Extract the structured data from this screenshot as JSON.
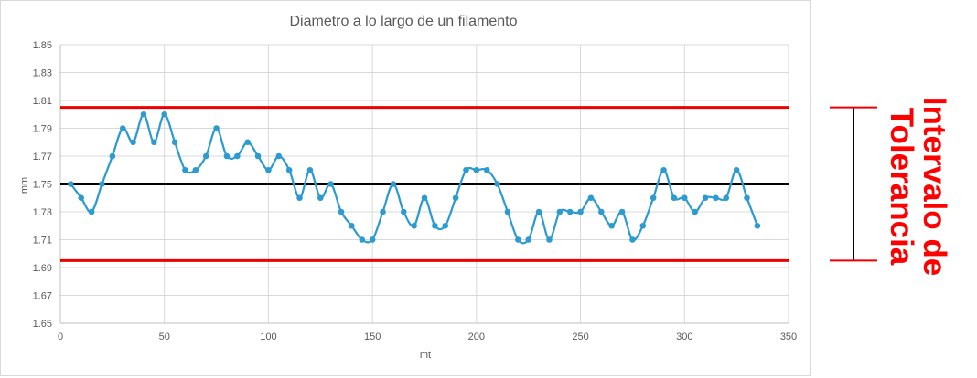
{
  "chart_data": {
    "type": "line",
    "title": "Diametro a lo largo de un filamento",
    "xlabel": "mt",
    "ylabel": "mm",
    "xlim": [
      0,
      350
    ],
    "ylim": [
      1.65,
      1.85
    ],
    "xticks": [
      0,
      50,
      100,
      150,
      200,
      250,
      300,
      350
    ],
    "yticks": [
      1.65,
      1.67,
      1.69,
      1.71,
      1.73,
      1.75,
      1.77,
      1.79,
      1.81,
      1.83,
      1.85
    ],
    "ytick_labels": [
      "1.65",
      "1.67",
      "1.69",
      "1.71",
      "1.73",
      "1.75",
      "1.77",
      "1.79",
      "1.81",
      "1.83",
      "1.85"
    ],
    "grid": true,
    "series": [
      {
        "x": [
          5,
          10,
          15,
          20,
          25,
          30,
          35,
          40,
          45,
          50,
          55,
          60,
          65,
          70,
          75,
          80,
          85,
          90,
          95,
          100,
          105,
          110,
          115,
          120,
          125,
          130,
          135,
          140,
          145,
          150,
          155,
          160,
          165,
          170,
          175,
          180,
          185,
          190,
          195,
          200,
          205,
          210,
          215,
          220,
          225,
          230,
          235,
          240,
          245,
          250,
          255,
          260,
          265,
          270,
          275,
          280,
          285,
          290,
          295,
          300,
          305,
          310,
          315,
          320,
          325,
          330,
          335
        ],
        "values": [
          1.75,
          1.74,
          1.73,
          1.75,
          1.77,
          1.79,
          1.78,
          1.8,
          1.78,
          1.8,
          1.78,
          1.76,
          1.76,
          1.77,
          1.79,
          1.77,
          1.77,
          1.78,
          1.77,
          1.76,
          1.77,
          1.76,
          1.74,
          1.76,
          1.74,
          1.75,
          1.73,
          1.72,
          1.71,
          1.71,
          1.73,
          1.75,
          1.73,
          1.72,
          1.74,
          1.72,
          1.72,
          1.74,
          1.76,
          1.76,
          1.76,
          1.75,
          1.73,
          1.71,
          1.71,
          1.73,
          1.71,
          1.73,
          1.73,
          1.73,
          1.74,
          1.73,
          1.72,
          1.73,
          1.71,
          1.72,
          1.74,
          1.76,
          1.74,
          1.74,
          1.73,
          1.74,
          1.74,
          1.74,
          1.76,
          1.74,
          1.72
        ],
        "color": "#2e9bd0"
      }
    ],
    "reference_lines": [
      {
        "y": 1.805,
        "color": "#ee0000"
      },
      {
        "y": 1.75,
        "color": "#000000"
      },
      {
        "y": 1.695,
        "color": "#ee0000"
      }
    ],
    "annotation": {
      "line1": "Intervalo de",
      "line2": "Tolerancia",
      "color": "#ff0000",
      "y_range": [
        1.695,
        1.805
      ]
    }
  }
}
